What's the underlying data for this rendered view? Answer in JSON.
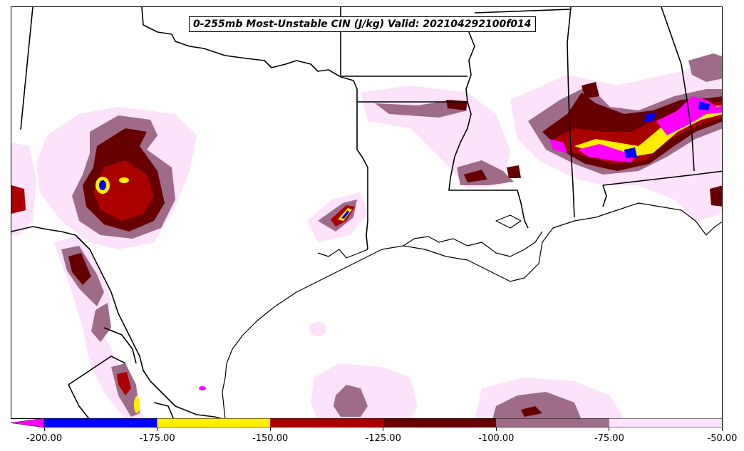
{
  "title": "0-255mb Most-Unstable CIN (J/kg) Valid: 202104292100f014",
  "colorbar": {
    "extend": "min",
    "extend_color": "#ff00ff",
    "bins": [
      {
        "from": -200,
        "to": -175,
        "color": "#0000ff"
      },
      {
        "from": -175,
        "to": -150,
        "color": "#ffee00"
      },
      {
        "from": -150,
        "to": -125,
        "color": "#aa0000"
      },
      {
        "from": -125,
        "to": -100,
        "color": "#660000"
      },
      {
        "from": -100,
        "to": -75,
        "color": "#9e6b88"
      },
      {
        "from": -75,
        "to": -50,
        "color": "#fce2fb"
      }
    ],
    "ticks": [
      "-200.00",
      "-175.00",
      "-150.00",
      "-125.00",
      "-100.00",
      "-75.00",
      "-50.00"
    ]
  },
  "field_colors": {
    "lightpink": "#fce2fb",
    "mauve": "#9e6b88",
    "darkred": "#660000",
    "red": "#aa0000",
    "yellow": "#ffee00",
    "blue": "#0000ff",
    "magenta": "#ff00ff"
  }
}
